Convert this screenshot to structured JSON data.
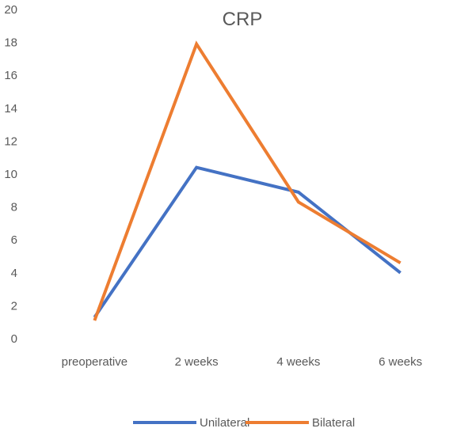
{
  "chart_data": {
    "type": "line",
    "title": "CRP",
    "xlabel": "",
    "ylabel": "",
    "categories": [
      "preoperative",
      "2 weeks",
      "4 weeks",
      "6 weeks"
    ],
    "ylim": [
      0,
      20
    ],
    "yticks": [
      0,
      2,
      4,
      6,
      8,
      10,
      12,
      14,
      16,
      18,
      20
    ],
    "grid": false,
    "legend_position": "bottom",
    "series": [
      {
        "name": "Unilateral",
        "color": "#4472C4",
        "values": [
          1.3,
          10.4,
          8.9,
          4.0
        ]
      },
      {
        "name": "Bilateral",
        "color": "#ED7D31",
        "values": [
          1.1,
          17.9,
          8.3,
          4.6
        ]
      }
    ]
  }
}
